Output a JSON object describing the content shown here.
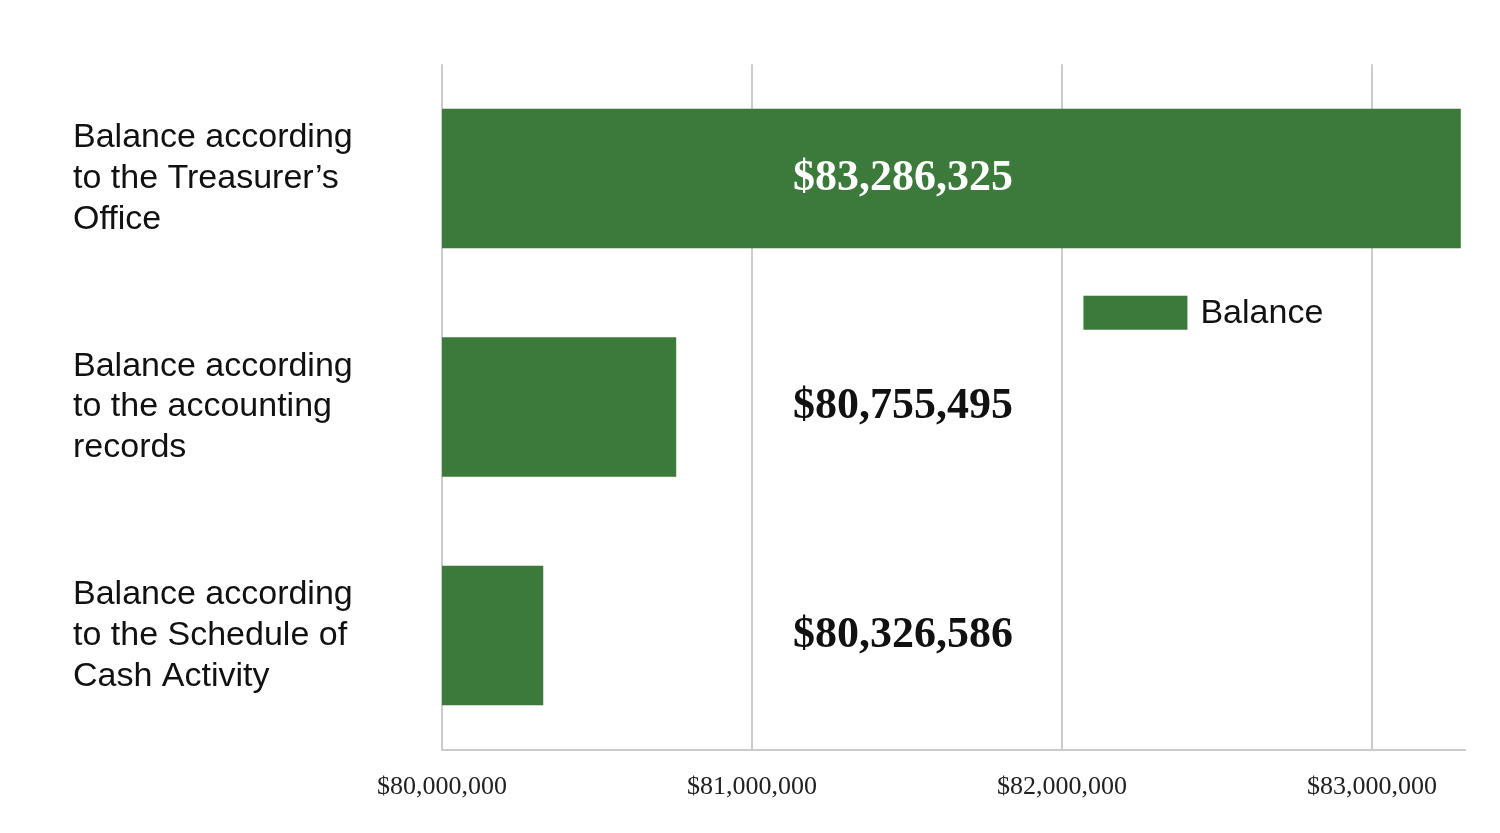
{
  "chart_data": {
    "type": "bar",
    "orientation": "horizontal",
    "categories": [
      "Balance according to the Treasurer’s Office",
      "Balance according to the accounting records",
      "Balance according to the Schedule of Cash Activity"
    ],
    "series": [
      {
        "name": "Balance",
        "color": "#3b7a3b",
        "values": [
          83286325,
          80755495,
          80326586
        ],
        "value_labels": [
          "$83,286,325",
          "$80,755,495",
          "$80,326,586"
        ]
      }
    ],
    "xlim": [
      80000000,
      83300000
    ],
    "xticks": [
      {
        "value": 80000000,
        "label": "$80,000,000"
      },
      {
        "value": 81000000,
        "label": "$81,000,000"
      },
      {
        "value": 82000000,
        "label": "$82,000,000"
      },
      {
        "value": 83000000,
        "label": "$83,000,000"
      }
    ],
    "grid": true,
    "legend": "right",
    "data_labels": true
  }
}
